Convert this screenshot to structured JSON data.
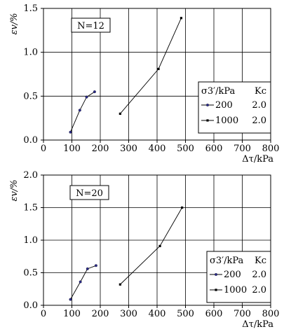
{
  "chart_data": [
    {
      "type": "line",
      "annotation": "N=12",
      "ylabel": "εv/%",
      "xlabel": "Δτ/kPa",
      "xlim": [
        0,
        800
      ],
      "ylim": [
        0.0,
        1.5
      ],
      "x_ticks": [
        "0",
        "100",
        "200",
        "300",
        "400",
        "500",
        "600",
        "700",
        "800"
      ],
      "y_ticks": [
        "0.0",
        "0.5",
        "1.0",
        "1.5"
      ],
      "grid": true,
      "legend": {
        "position": "right",
        "header_col1": "σ3′/kPa",
        "header_col2": "Kc"
      },
      "series": [
        {
          "name": "200",
          "kc": "2.0",
          "marker": "dot",
          "x": [
            95,
            128,
            152,
            180
          ],
          "y": [
            0.09,
            0.34,
            0.49,
            0.55
          ]
        },
        {
          "name": "1000",
          "kc": "2.0",
          "marker": "square",
          "x": [
            270,
            405,
            485
          ],
          "y": [
            0.3,
            0.81,
            1.39
          ]
        }
      ]
    },
    {
      "type": "line",
      "annotation": "N=20",
      "ylabel": "εv/%",
      "xlabel": "Δτ/kPa",
      "xlim": [
        0,
        800
      ],
      "ylim": [
        0.0,
        2.0
      ],
      "x_ticks": [
        "0",
        "100",
        "200",
        "300",
        "400",
        "500",
        "600",
        "700",
        "800"
      ],
      "y_ticks": [
        "0.0",
        "0.5",
        "1.0",
        "1.5",
        "2.0"
      ],
      "grid": true,
      "legend": {
        "position": "lower-right",
        "header_col1": "σ3′/kPa",
        "header_col2": "Kc"
      },
      "series": [
        {
          "name": "200",
          "kc": "2.0",
          "marker": "dot",
          "x": [
            95,
            130,
            155,
            185
          ],
          "y": [
            0.09,
            0.36,
            0.56,
            0.61
          ]
        },
        {
          "name": "1000",
          "kc": "2.0",
          "marker": "square",
          "x": [
            270,
            410,
            488
          ],
          "y": [
            0.32,
            0.91,
            1.5
          ]
        }
      ]
    }
  ]
}
